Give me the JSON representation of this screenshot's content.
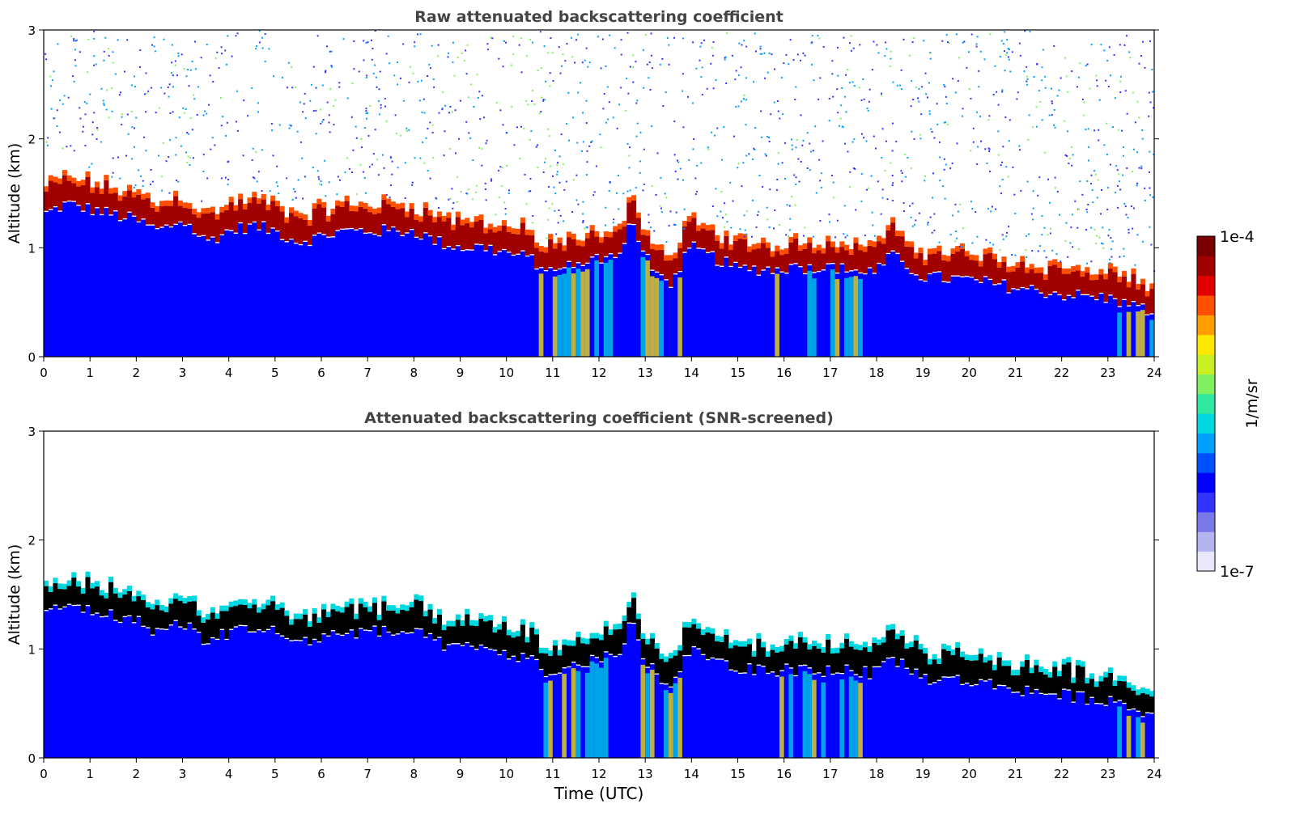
{
  "chart_data": [
    {
      "type": "heatmap",
      "title": "Raw attenuated backscattering coefficient",
      "xlabel": "",
      "ylabel": "Altitude (km)",
      "xlim": [
        0,
        24
      ],
      "ylim": [
        0,
        3
      ],
      "x_ticks": [
        "0",
        "1",
        "2",
        "3",
        "4",
        "5",
        "6",
        "7",
        "8",
        "9",
        "10",
        "11",
        "12",
        "13",
        "14",
        "15",
        "16",
        "17",
        "18",
        "19",
        "20",
        "21",
        "22",
        "23",
        "24"
      ],
      "y_ticks": [
        "0",
        "1",
        "2",
        "3"
      ],
      "cloud_base_km": [
        [
          0,
          1.35
        ],
        [
          0.5,
          1.45
        ],
        [
          1,
          1.4
        ],
        [
          1.5,
          1.35
        ],
        [
          2,
          1.3
        ],
        [
          2.5,
          1.2
        ],
        [
          3,
          1.3
        ],
        [
          3.5,
          1.1
        ],
        [
          4,
          1.2
        ],
        [
          4.5,
          1.25
        ],
        [
          5,
          1.2
        ],
        [
          5.5,
          1.1
        ],
        [
          6,
          1.15
        ],
        [
          6.5,
          1.2
        ],
        [
          7,
          1.2
        ],
        [
          8,
          1.2
        ],
        [
          8.5,
          1.1
        ],
        [
          9,
          1.05
        ],
        [
          9.5,
          1.05
        ],
        [
          10,
          1.0
        ],
        [
          10.5,
          0.95
        ],
        [
          11,
          0.8
        ],
        [
          11.5,
          0.9
        ],
        [
          12,
          0.95
        ],
        [
          12.5,
          1.0
        ],
        [
          12.7,
          1.3
        ],
        [
          13,
          0.95
        ],
        [
          13.5,
          0.7
        ],
        [
          14,
          1.05
        ],
        [
          14.5,
          0.95
        ],
        [
          15,
          0.85
        ],
        [
          16,
          0.85
        ],
        [
          17,
          0.85
        ],
        [
          18,
          0.82
        ],
        [
          18.3,
          0.98
        ],
        [
          19,
          0.78
        ],
        [
          20,
          0.75
        ],
        [
          21,
          0.68
        ],
        [
          22,
          0.62
        ],
        [
          23,
          0.58
        ],
        [
          24,
          0.45
        ]
      ],
      "grid": false
    },
    {
      "type": "heatmap",
      "title": "Attenuated backscattering coefficient (SNR-screened)",
      "xlabel": "Time (UTC)",
      "ylabel": "Altitude (km)",
      "xlim": [
        0,
        24
      ],
      "ylim": [
        0,
        3
      ],
      "x_ticks": [
        "0",
        "1",
        "2",
        "3",
        "4",
        "5",
        "6",
        "7",
        "8",
        "9",
        "10",
        "11",
        "12",
        "13",
        "14",
        "15",
        "16",
        "17",
        "18",
        "19",
        "20",
        "21",
        "22",
        "23",
        "24"
      ],
      "y_ticks": [
        "0",
        "1",
        "2",
        "3"
      ],
      "cloud_base_km": [
        [
          0,
          1.35
        ],
        [
          0.5,
          1.45
        ],
        [
          1,
          1.4
        ],
        [
          1.5,
          1.35
        ],
        [
          2,
          1.3
        ],
        [
          2.5,
          1.2
        ],
        [
          3,
          1.3
        ],
        [
          3.5,
          1.1
        ],
        [
          4,
          1.2
        ],
        [
          4.5,
          1.25
        ],
        [
          5,
          1.2
        ],
        [
          5.5,
          1.1
        ],
        [
          6,
          1.15
        ],
        [
          6.5,
          1.2
        ],
        [
          7,
          1.2
        ],
        [
          8,
          1.2
        ],
        [
          8.5,
          1.1
        ],
        [
          9,
          1.05
        ],
        [
          9.5,
          1.05
        ],
        [
          10,
          1.0
        ],
        [
          10.5,
          0.95
        ],
        [
          11,
          0.8
        ],
        [
          11.5,
          0.9
        ],
        [
          12,
          0.95
        ],
        [
          12.5,
          1.0
        ],
        [
          12.7,
          1.3
        ],
        [
          13,
          0.95
        ],
        [
          13.5,
          0.7
        ],
        [
          14,
          1.05
        ],
        [
          14.5,
          0.95
        ],
        [
          15,
          0.85
        ],
        [
          16,
          0.85
        ],
        [
          17,
          0.85
        ],
        [
          18,
          0.82
        ],
        [
          18.3,
          0.98
        ],
        [
          19,
          0.78
        ],
        [
          20,
          0.75
        ],
        [
          21,
          0.68
        ],
        [
          22,
          0.62
        ],
        [
          23,
          0.58
        ],
        [
          24,
          0.45
        ]
      ],
      "grid": false
    }
  ],
  "colorbar": {
    "label": "1/m/sr",
    "max_label": "1e-4",
    "min_label": "1e-7",
    "colors": [
      "#e8e8fa",
      "#b4b4f0",
      "#7878e6",
      "#3232ff",
      "#0000ff",
      "#0050ff",
      "#00a0ff",
      "#00d8e0",
      "#30e8a0",
      "#80f060",
      "#c8f020",
      "#ffe800",
      "#ffa000",
      "#ff5000",
      "#e00000",
      "#a00000",
      "#7a0000"
    ]
  }
}
